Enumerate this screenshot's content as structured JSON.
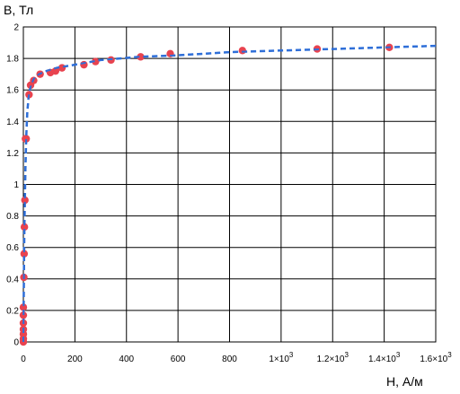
{
  "chart_data": {
    "type": "scatter",
    "ylabel": "B, Тл",
    "xlabel": "H, А/м",
    "xlim": [
      0,
      1600
    ],
    "ylim": [
      0,
      2
    ],
    "grid": true,
    "x_ticks": [
      0,
      200,
      400,
      600,
      800,
      1000,
      1200,
      1400,
      1600
    ],
    "x_tick_labels": [
      {
        "text": "0",
        "exp": ""
      },
      {
        "text": "200",
        "exp": ""
      },
      {
        "text": "400",
        "exp": ""
      },
      {
        "text": "600",
        "exp": ""
      },
      {
        "text": "800",
        "exp": ""
      },
      {
        "text": "1×10",
        "exp": "3"
      },
      {
        "text": "1.2×10",
        "exp": "3"
      },
      {
        "text": "1.4×10",
        "exp": "3"
      },
      {
        "text": "1.6×10",
        "exp": "3"
      }
    ],
    "y_ticks": [
      0,
      0.2,
      0.4,
      0.6,
      0.8,
      1,
      1.2,
      1.4,
      1.6,
      1.8,
      2
    ],
    "y_tick_labels": [
      "0",
      "0.2",
      "0.4",
      "0.6",
      "0.8",
      "1",
      "1.2",
      "1.4",
      "1.6",
      "1.8",
      "2"
    ],
    "series": [
      {
        "type": "scatter",
        "color": "#e8434f",
        "x": [
          0,
          0,
          0,
          0,
          0,
          0,
          0,
          2,
          3,
          4,
          6,
          8,
          11,
          22,
          28,
          40,
          65,
          105,
          125,
          150,
          235,
          280,
          340,
          455,
          570,
          850,
          1140,
          1420
        ],
        "y": [
          0,
          0.02,
          0.05,
          0.08,
          0.12,
          0.17,
          0.22,
          0.41,
          0.56,
          0.73,
          0.9,
          1.29,
          1.29,
          1.57,
          1.63,
          1.66,
          1.7,
          1.71,
          1.72,
          1.74,
          1.76,
          1.78,
          1.79,
          1.81,
          1.83,
          1.85,
          1.86,
          1.87
        ]
      },
      {
        "type": "line",
        "style": "dashed",
        "color": "#2f6fd8",
        "x": [
          0,
          2,
          4,
          6,
          8,
          11,
          15,
          20,
          25,
          30,
          40,
          60,
          90,
          130,
          200,
          300,
          450,
          600,
          800,
          1000,
          1200,
          1400,
          1600
        ],
        "y": [
          0,
          0.4,
          0.7,
          0.9,
          1.1,
          1.3,
          1.45,
          1.55,
          1.6,
          1.63,
          1.67,
          1.7,
          1.72,
          1.74,
          1.76,
          1.79,
          1.81,
          1.82,
          1.84,
          1.85,
          1.86,
          1.87,
          1.88
        ]
      }
    ]
  }
}
